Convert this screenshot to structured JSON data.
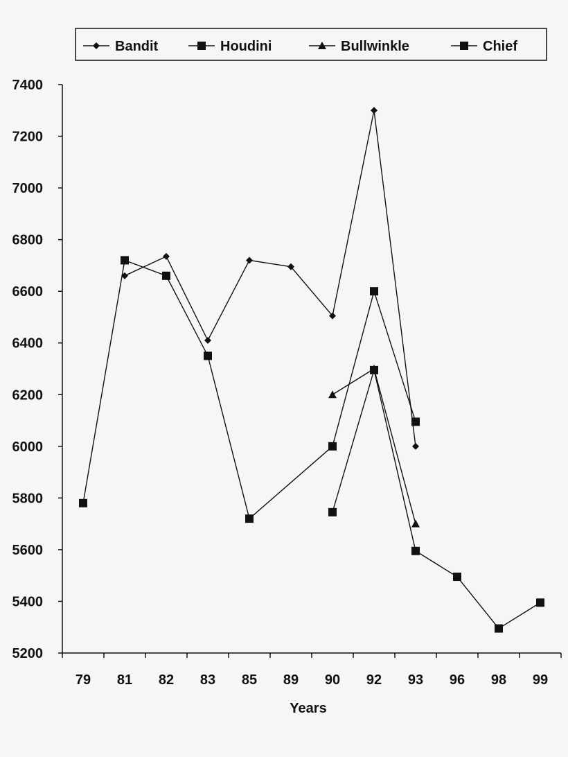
{
  "chart_data": {
    "type": "line",
    "title": "",
    "xlabel": "Years",
    "ylabel": "",
    "categories": [
      "79",
      "81",
      "82",
      "83",
      "85",
      "89",
      "90",
      "92",
      "93",
      "96",
      "98",
      "99"
    ],
    "ylim": [
      5200,
      7400
    ],
    "yticks": [
      5200,
      5400,
      5600,
      5800,
      6000,
      6200,
      6400,
      6600,
      6800,
      7000,
      7200,
      7400
    ],
    "grid": false,
    "legend_position": "top",
    "series": [
      {
        "name": "Bandit",
        "marker": "diamond",
        "points": [
          {
            "x": "81",
            "y": 6660
          },
          {
            "x": "82",
            "y": 6735
          },
          {
            "x": "83",
            "y": 6410
          },
          {
            "x": "85",
            "y": 6720
          },
          {
            "x": "89",
            "y": 6695
          },
          {
            "x": "90",
            "y": 6505
          },
          {
            "x": "92",
            "y": 7300
          },
          {
            "x": "93",
            "y": 6000
          }
        ]
      },
      {
        "name": "Houdini",
        "marker": "square",
        "points": [
          {
            "x": "79",
            "y": 5780
          },
          {
            "x": "81",
            "y": 6720
          },
          {
            "x": "82",
            "y": 6660
          },
          {
            "x": "83",
            "y": 6350
          },
          {
            "x": "85",
            "y": 5720
          },
          {
            "x": "90",
            "y": 6000
          },
          {
            "x": "92",
            "y": 6600
          },
          {
            "x": "93",
            "y": 6095
          }
        ]
      },
      {
        "name": "Bullwinkle",
        "marker": "triangle",
        "points": [
          {
            "x": "90",
            "y": 6200
          },
          {
            "x": "92",
            "y": 6300
          },
          {
            "x": "93",
            "y": 5700
          }
        ]
      },
      {
        "name": "Chief",
        "marker": "square",
        "points": [
          {
            "x": "90",
            "y": 5745
          },
          {
            "x": "92",
            "y": 6295
          },
          {
            "x": "93",
            "y": 5595
          },
          {
            "x": "96",
            "y": 5495
          },
          {
            "x": "98",
            "y": 5295
          },
          {
            "x": "99",
            "y": 5395
          }
        ]
      }
    ]
  }
}
